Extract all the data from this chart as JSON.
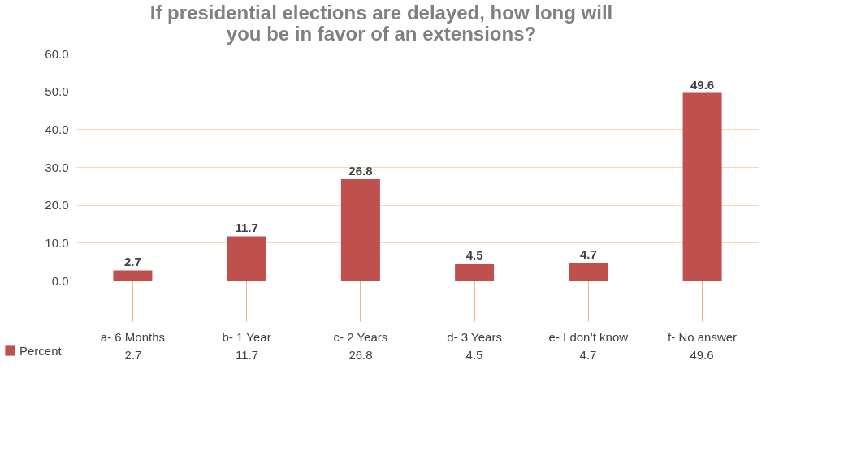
{
  "chart_data": {
    "type": "bar",
    "title": "If presidential elections are delayed, how long will you be in favor of an extensions?",
    "categories": [
      "a- 6 Months",
      "b- 1 Year",
      "c- 2 Years",
      "d- 3 Years",
      "e- I don’t know",
      "f- No answer"
    ],
    "series": [
      {
        "name": "Percent",
        "color": "#c0504d",
        "values": [
          2.7,
          11.7,
          26.8,
          4.5,
          4.7,
          49.6
        ]
      }
    ],
    "ylim": [
      0,
      60
    ],
    "yticks": [
      {
        "value": 0,
        "label": "0.0"
      },
      {
        "value": 10,
        "label": "10.0"
      },
      {
        "value": 20,
        "label": "20.0"
      },
      {
        "value": 30,
        "label": "30.0"
      },
      {
        "value": 40,
        "label": "40.0"
      },
      {
        "value": 50,
        "label": "50.0"
      },
      {
        "value": 60,
        "label": "60.0"
      }
    ],
    "annotations": [
      "2.7",
      "11.7",
      "26.8",
      "4.5",
      "4.7",
      "49.6"
    ],
    "grid": "y",
    "legend": "bottom",
    "data_labels": true
  }
}
